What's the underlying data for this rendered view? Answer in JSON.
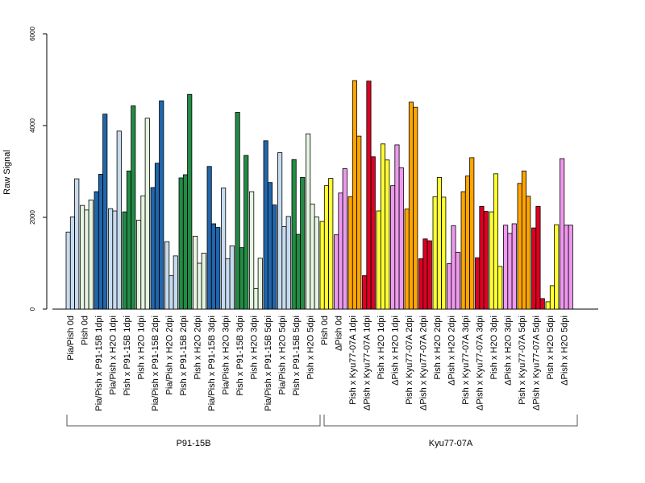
{
  "chart_data": {
    "type": "bar",
    "title": "",
    "xlabel": "",
    "ylabel": "Raw Signal",
    "ylim": [
      0,
      6000
    ],
    "yticks": [
      0,
      2000,
      4000,
      6000
    ],
    "grid": false,
    "legend": "none",
    "categories": [
      "Pia/Pish 0d",
      "Pish 0d",
      "Pia/Pish x P91-15B 1dpi",
      "Pia/Pish x H2O 1dpi",
      "Pish x P91-15B 1dpi",
      "Pish x H2O 1dpi",
      "Pia/Pish x P91-15B 2dpi",
      "Pia/Pish x H2O 2dpi",
      "Pish x P91-15B 2dpi",
      "Pish x H2O 2dpi",
      "Pia/Pish x P91-15B 3dpi",
      "Pia/Pish x H2O 3dpi",
      "Pish x P91-15B 3dpi",
      "Pish x H2O 3dpi",
      "Pia/Pish x P91-15B 5dpi",
      "Pia/Pish x H2O 5dpi",
      "Pish x P91-15B 5dpi",
      "Pish x H2O 5dpi",
      "Pish 0d",
      "ΔPish 0d",
      "Pish x Kyu77-07A 1dpi",
      "ΔPish x Kyu77-07A 1dpi",
      "Pish x H2O 1dpi",
      "ΔPish x H2O 1dpi",
      "Pish x Kyu77-07A 2dpi",
      "ΔPish x Kyu77-07A 2dpi",
      "Pish x H2O 2dpi",
      "ΔPish x H2O 2dpi",
      "Pish x Kyu77-07A 3dpi",
      "ΔPish x Kyu77-07A 3dpi",
      "Pish x H2O 3dpi",
      "ΔPish x H2O 3dpi",
      "Pish x Kyu77-07A 5dpi",
      "ΔPish x Kyu77-07A 5dpi",
      "Pish x H2O 5dpi",
      "ΔPish x H2O 5dpi"
    ],
    "colors": [
      "#c6dbef",
      "#e5f5e0",
      "#2166ac",
      "#c6dbef",
      "#238b45",
      "#e5f5e0",
      "#2166ac",
      "#c6dbef",
      "#238b45",
      "#e5f5e0",
      "#2166ac",
      "#c6dbef",
      "#238b45",
      "#e5f5e0",
      "#2166ac",
      "#c6dbef",
      "#238b45",
      "#e5f5e0",
      "#ffff33",
      "#ee99ee",
      "#ffa500",
      "#dd0022",
      "#ffff33",
      "#ee99ee",
      "#ffa500",
      "#dd0022",
      "#ffff33",
      "#ee99ee",
      "#ffa500",
      "#dd0022",
      "#ffff33",
      "#ee99ee",
      "#ffa500",
      "#dd0022",
      "#ffff33",
      "#ee99ee"
    ],
    "values": [
      [
        1680,
        2010,
        2840
      ],
      [
        2260,
        2160,
        2380
      ],
      [
        2560,
        2940,
        4250
      ],
      [
        2190,
        2140,
        3880
      ],
      [
        2120,
        3010,
        4430
      ],
      [
        1940,
        2470,
        4160
      ],
      [
        2650,
        3180,
        4540
      ],
      [
        1470,
        730,
        1160
      ],
      [
        2860,
        2930,
        4680
      ],
      [
        1590,
        1000,
        1220
      ],
      [
        3110,
        1860,
        1780
      ],
      [
        2640,
        1100,
        1380
      ],
      [
        4290,
        1340,
        3350
      ],
      [
        2560,
        450,
        1110
      ],
      [
        3670,
        2760,
        2270
      ],
      [
        3410,
        1800,
        2020
      ],
      [
        3260,
        1630,
        2870
      ],
      [
        3820,
        2290,
        2010
      ],
      [
        1910,
        2690,
        2850
      ],
      [
        1620,
        2530,
        3060
      ],
      [
        2450,
        4980,
        3770
      ],
      [
        730,
        4970,
        3320
      ],
      [
        2140,
        3600,
        3250
      ],
      [
        2690,
        3580,
        3080
      ],
      [
        2180,
        4510,
        4400
      ],
      [
        1100,
        1530,
        1490
      ],
      [
        2450,
        2870,
        2440
      ],
      [
        990,
        1820,
        1240
      ],
      [
        2560,
        2900,
        3300
      ],
      [
        1120,
        2240,
        2130
      ],
      [
        2120,
        2950,
        930
      ],
      [
        1830,
        1650,
        1860
      ],
      [
        2740,
        3010,
        2460
      ],
      [
        1770,
        2240,
        230
      ],
      [
        160,
        510,
        1840
      ],
      [
        3280,
        1830,
        1830
      ]
    ],
    "groups": [
      {
        "name": "P91-15B",
        "start": 0,
        "end": 17
      },
      {
        "name": "Kyu77-07A",
        "start": 18,
        "end": 35
      }
    ]
  }
}
